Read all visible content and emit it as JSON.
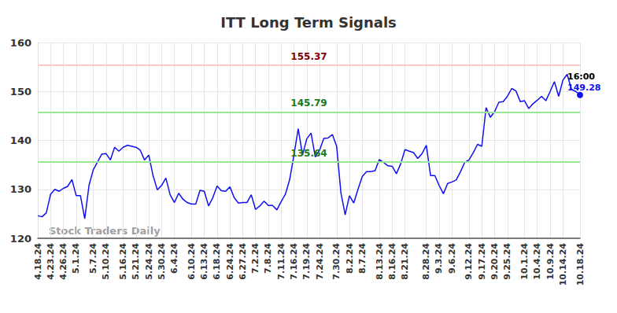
{
  "chart_data": {
    "type": "line",
    "title": "ITT Long Term Signals",
    "categories": [
      "4.18.24",
      null,
      null,
      "4.23.24",
      null,
      null,
      "4.26.24",
      null,
      null,
      "5.1.24",
      null,
      null,
      null,
      "5.7.24",
      null,
      null,
      "5.10.24",
      null,
      null,
      null,
      "5.16.24",
      null,
      null,
      "5.21.24",
      null,
      null,
      "5.24.24",
      null,
      null,
      "5.30.24",
      null,
      null,
      "6.4.24",
      null,
      null,
      null,
      "6.10.24",
      null,
      null,
      "6.13.24",
      null,
      null,
      "6.18.24",
      null,
      null,
      "6.24.24",
      null,
      null,
      "6.27.24",
      null,
      null,
      "7.2.24",
      null,
      null,
      "7.8.24",
      null,
      null,
      "7.11.24",
      null,
      null,
      "7.16.24",
      null,
      null,
      "7.19.24",
      null,
      null,
      "7.24.24",
      null,
      null,
      null,
      "7.30.24",
      null,
      null,
      "8.2.24",
      null,
      null,
      "8.7.24",
      null,
      null,
      null,
      "8.13.24",
      null,
      null,
      "8.16.24",
      null,
      null,
      "8.21.24",
      null,
      null,
      null,
      null,
      "8.28.24",
      null,
      null,
      "9.3.24",
      null,
      null,
      "9.6.24",
      null,
      null,
      null,
      "9.12.24",
      null,
      null,
      "9.17.24",
      null,
      null,
      "9.20.24",
      null,
      null,
      "9.25.24",
      null,
      null,
      null,
      "10.1.24",
      null,
      null,
      "10.4.24",
      null,
      null,
      "10.9.24",
      null,
      null,
      "10.14.24",
      null,
      null,
      null,
      "10.18.24"
    ],
    "values": [
      124.6,
      124.4,
      125.2,
      129.0,
      130.0,
      129.6,
      130.2,
      130.6,
      132.0,
      128.7,
      128.7,
      124.0,
      130.8,
      134.0,
      135.6,
      137.2,
      137.3,
      136.0,
      138.6,
      137.8,
      138.6,
      139.0,
      138.8,
      138.6,
      138.0,
      136.0,
      137.0,
      132.8,
      129.9,
      130.8,
      132.3,
      128.9,
      127.3,
      129.2,
      128.0,
      127.3,
      127.0,
      127.0,
      129.8,
      129.6,
      126.6,
      128.3,
      130.7,
      129.7,
      129.6,
      130.5,
      128.3,
      127.2,
      127.3,
      127.3,
      128.9,
      125.9,
      126.6,
      127.6,
      126.7,
      126.7,
      125.8,
      127.5,
      129.0,
      132.0,
      137.0,
      142.4,
      137.0,
      140.3,
      141.5,
      136.6,
      138.0,
      140.4,
      140.5,
      141.2,
      138.8,
      129.3,
      124.8,
      128.7,
      127.2,
      130.0,
      132.6,
      133.6,
      133.6,
      133.8,
      136.1,
      135.5,
      134.8,
      134.7,
      133.2,
      135.2,
      138.1,
      137.8,
      137.5,
      136.3,
      137.3,
      139.0,
      132.8,
      132.8,
      130.8,
      129.1,
      131.2,
      131.5,
      131.9,
      133.6,
      135.5,
      136.0,
      137.5,
      139.2,
      138.8,
      146.7,
      144.7,
      145.9,
      147.8,
      147.9,
      149.0,
      150.6,
      150.1,
      147.9,
      148.1,
      146.5,
      147.5,
      148.2,
      149.0,
      148.1,
      150.0,
      152.0,
      149.0,
      152.3,
      153.5,
      150.4,
      150.0,
      149.28
    ],
    "color": "#1010f0",
    "ylim": [
      120,
      160
    ],
    "yticks": [
      120,
      130,
      140,
      150,
      160
    ],
    "grid": true,
    "levels": [
      {
        "value": 155.37,
        "color": "#ffc8c8",
        "label_color": "#800000"
      },
      {
        "value": 145.79,
        "color": "#99e699",
        "label_color": "#1a7a1a"
      },
      {
        "value": 135.64,
        "color": "#99e699",
        "label_color": "#1a7a1a"
      }
    ],
    "end_label": {
      "time": "16:00",
      "value": 149.28
    },
    "watermark": "Stock Traders Daily"
  }
}
